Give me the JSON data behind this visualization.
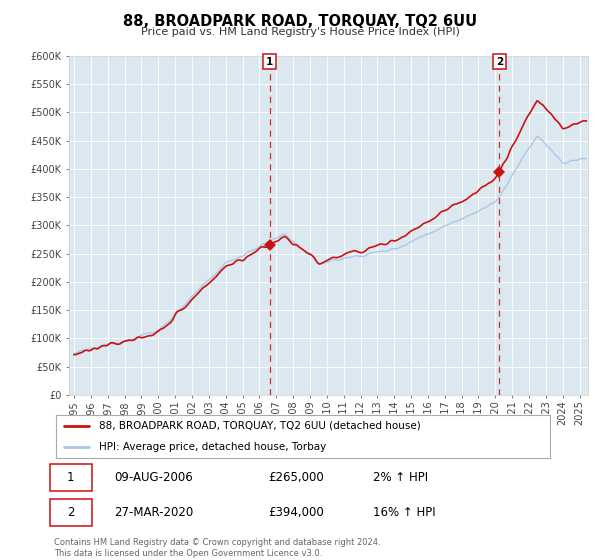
{
  "title": "88, BROADPARK ROAD, TORQUAY, TQ2 6UU",
  "subtitle": "Price paid vs. HM Land Registry's House Price Index (HPI)",
  "ylim": [
    0,
    600000
  ],
  "yticks": [
    0,
    50000,
    100000,
    150000,
    200000,
    250000,
    300000,
    350000,
    400000,
    450000,
    500000,
    550000,
    600000
  ],
  "ytick_labels": [
    "£0",
    "£50K",
    "£100K",
    "£150K",
    "£200K",
    "£250K",
    "£300K",
    "£350K",
    "£400K",
    "£450K",
    "£500K",
    "£550K",
    "£600K"
  ],
  "xlim_start": 1994.7,
  "xlim_end": 2025.5,
  "xticks": [
    1995,
    1996,
    1997,
    1998,
    1999,
    2000,
    2001,
    2002,
    2003,
    2004,
    2005,
    2006,
    2007,
    2008,
    2009,
    2010,
    2011,
    2012,
    2013,
    2014,
    2015,
    2016,
    2017,
    2018,
    2019,
    2020,
    2021,
    2022,
    2023,
    2024,
    2025
  ],
  "hpi_color": "#aac8e8",
  "price_color": "#cc1111",
  "marker1_x": 2006.6,
  "marker1_y": 265000,
  "marker2_x": 2020.24,
  "marker2_y": 394000,
  "vline1_x": 2006.6,
  "vline2_x": 2020.24,
  "legend_line1": "88, BROADPARK ROAD, TORQUAY, TQ2 6UU (detached house)",
  "legend_line2": "HPI: Average price, detached house, Torbay",
  "table_row1": [
    "1",
    "09-AUG-2006",
    "£265,000",
    "2% ↑ HPI"
  ],
  "table_row2": [
    "2",
    "27-MAR-2020",
    "£394,000",
    "16% ↑ HPI"
  ],
  "footnote": "Contains HM Land Registry data © Crown copyright and database right 2024.\nThis data is licensed under the Open Government Licence v3.0.",
  "plot_bg_color": "#dce8f0",
  "grid_color": "#ffffff",
  "fig_width": 6.0,
  "fig_height": 5.6
}
